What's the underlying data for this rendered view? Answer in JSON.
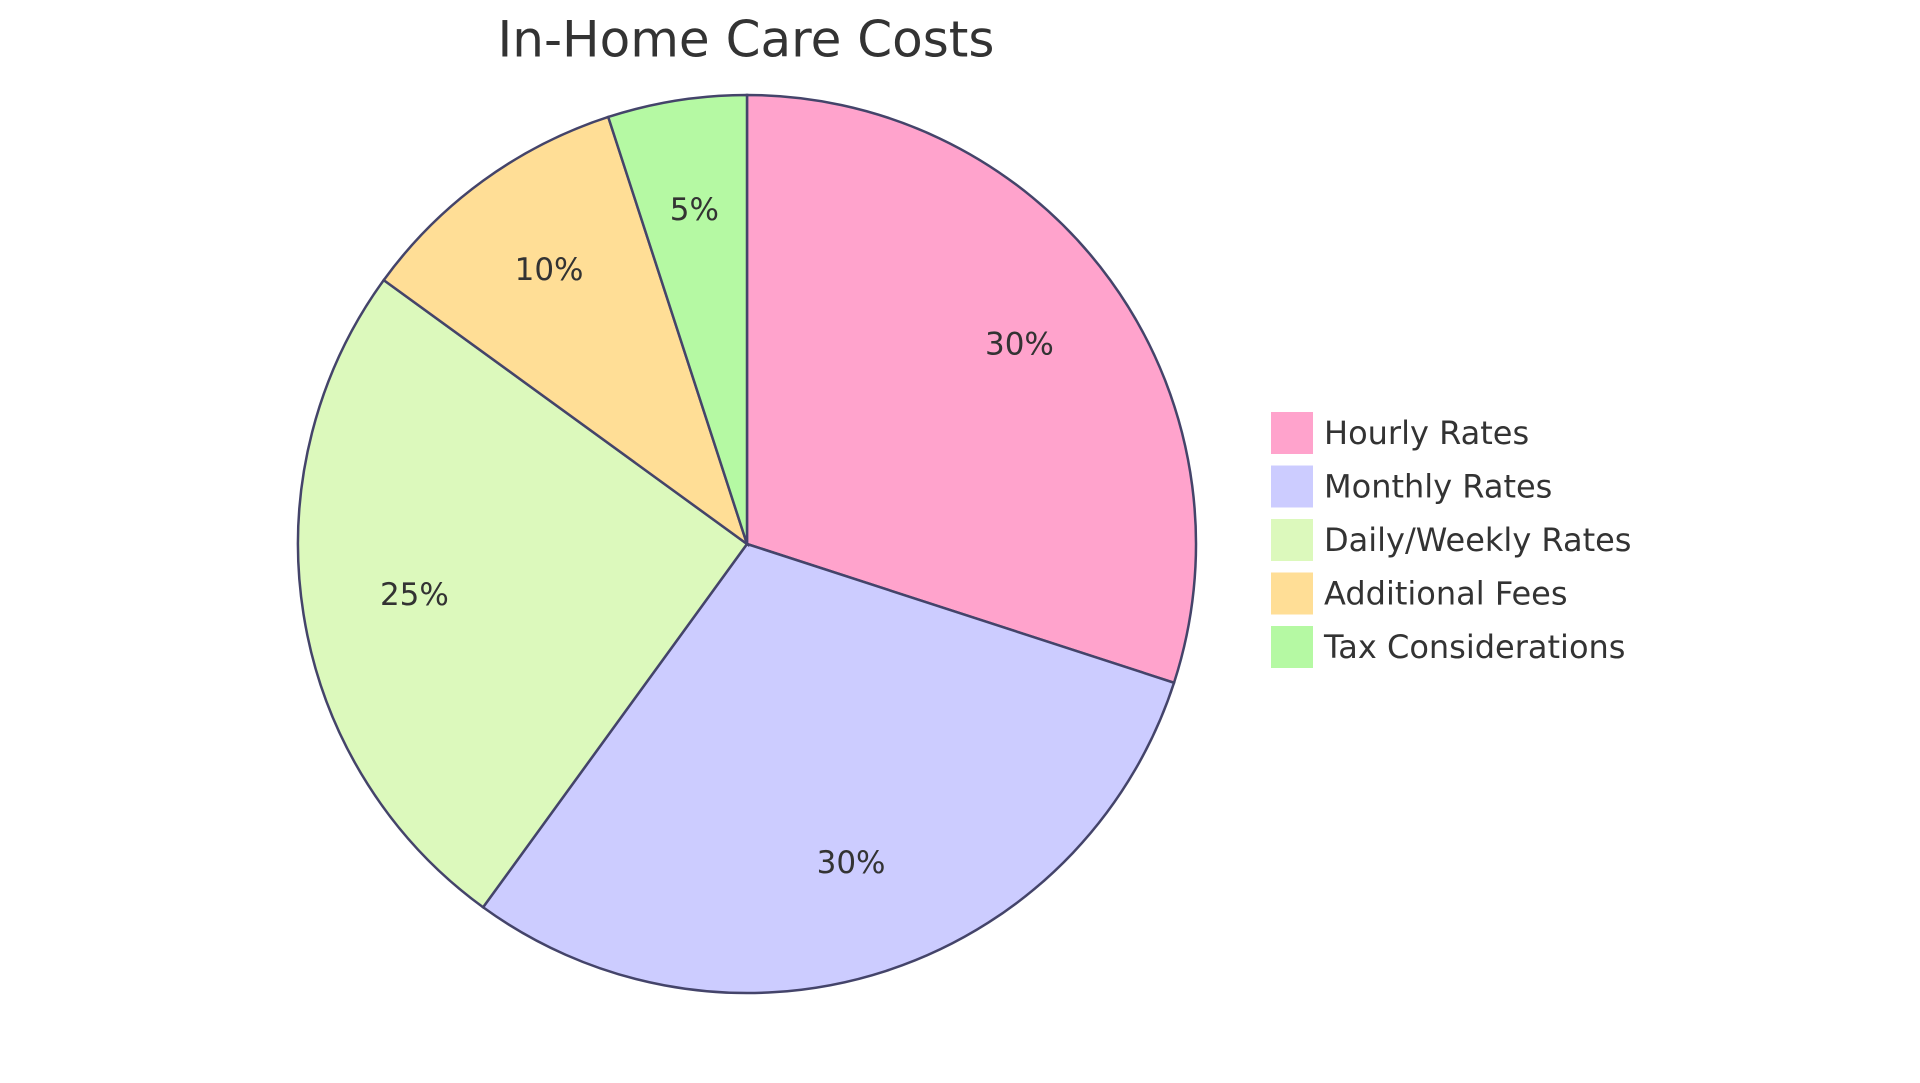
{
  "chart_data": {
    "type": "pie",
    "title": "In-Home Care Costs",
    "categories": [
      "Hourly Rates",
      "Monthly Rates",
      "Daily/Weekly Rates",
      "Additional Fees",
      "Tax Considerations"
    ],
    "values": [
      30,
      30,
      25,
      10,
      5
    ],
    "value_labels": [
      "30%",
      "30%",
      "25%",
      "10%",
      "5%"
    ],
    "colors": [
      "#ffa3cc",
      "#ccccff",
      "#dcf9bc",
      "#ffde96",
      "#b5f9a3"
    ],
    "legend": "right"
  }
}
